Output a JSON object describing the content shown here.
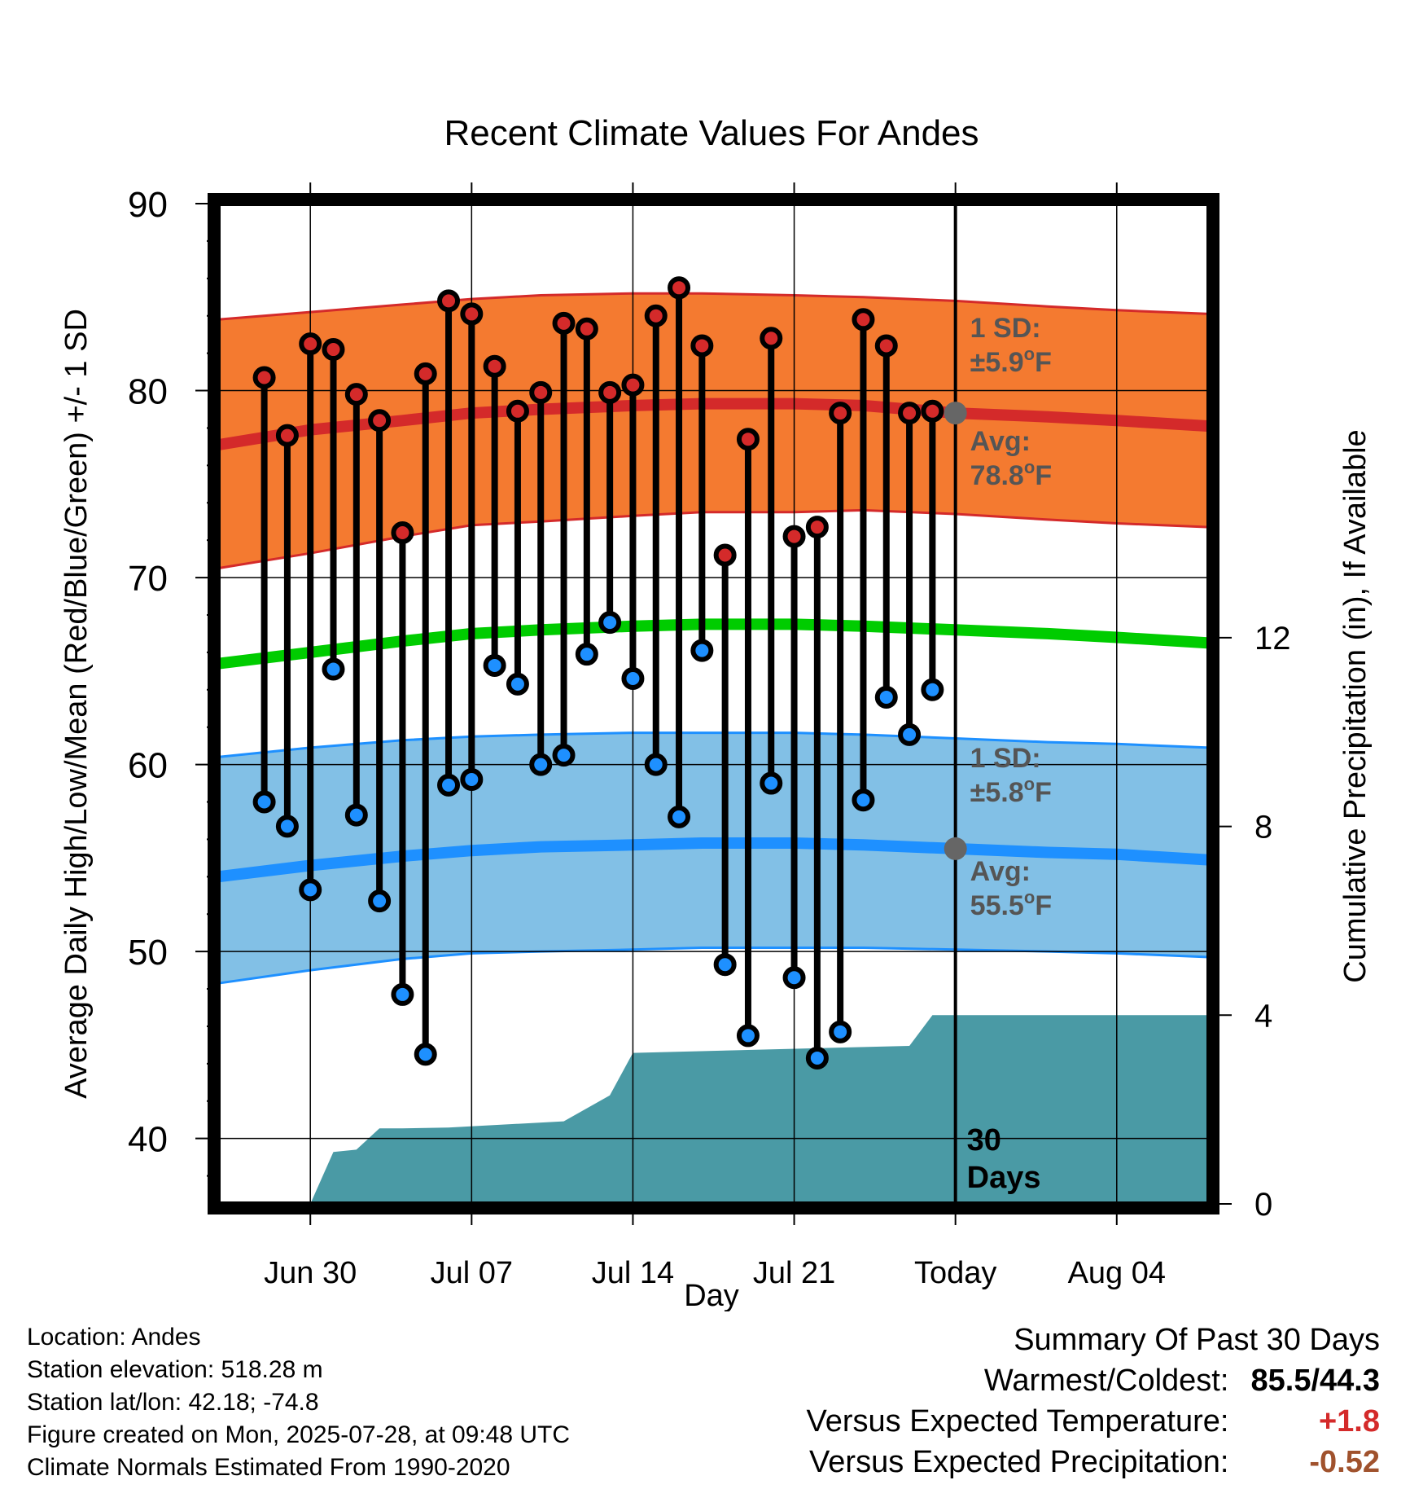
{
  "chart_data": {
    "type": "line",
    "title": "Recent Climate Values For Andes",
    "xlabel": "Day",
    "ylabel": "Average Daily High/Low/Mean (Red/Blue/Green) +/- 1 SD",
    "y2label": "Cumulative Precipitation (in), If Available",
    "ylim": [
      36.5,
      90
    ],
    "y2lim": [
      0,
      21.2
    ],
    "yticks": [
      40,
      50,
      60,
      70,
      80,
      90
    ],
    "y2ticks": [
      0,
      4,
      8,
      12
    ],
    "xlim": [
      "2025-06-26",
      "2025-08-08"
    ],
    "xticks": [
      {
        "date": "2025-06-30",
        "label": "Jun 30"
      },
      {
        "date": "2025-07-07",
        "label": "Jul 07"
      },
      {
        "date": "2025-07-14",
        "label": "Jul 14"
      },
      {
        "date": "2025-07-21",
        "label": "Jul 21"
      },
      {
        "date": "2025-07-28",
        "label": "Today"
      },
      {
        "date": "2025-08-04",
        "label": "Aug 04"
      }
    ],
    "grid": true,
    "today": "2025-07-28",
    "days_label": "30\nDays",
    "normals": {
      "dates": [
        "2025-06-26",
        "2025-06-30",
        "2025-07-04",
        "2025-07-07",
        "2025-07-10",
        "2025-07-14",
        "2025-07-17",
        "2025-07-21",
        "2025-07-24",
        "2025-07-28",
        "2025-08-01",
        "2025-08-04",
        "2025-08-08"
      ],
      "high_avg": [
        77.1,
        77.9,
        78.4,
        78.8,
        79.0,
        79.2,
        79.3,
        79.3,
        79.2,
        78.8,
        78.6,
        78.4,
        78.1
      ],
      "high_upper": [
        83.8,
        84.2,
        84.6,
        84.9,
        85.1,
        85.2,
        85.2,
        85.1,
        85.0,
        84.8,
        84.5,
        84.3,
        84.1
      ],
      "high_lower": [
        70.5,
        71.3,
        72.2,
        72.8,
        73.0,
        73.3,
        73.5,
        73.5,
        73.6,
        73.4,
        73.1,
        72.9,
        72.7
      ],
      "mean": [
        65.4,
        66.0,
        66.6,
        67.0,
        67.2,
        67.4,
        67.5,
        67.5,
        67.4,
        67.2,
        67.0,
        66.8,
        66.5
      ],
      "low_avg": [
        54.0,
        54.6,
        55.1,
        55.4,
        55.6,
        55.7,
        55.8,
        55.8,
        55.7,
        55.5,
        55.3,
        55.2,
        54.9
      ],
      "low_upper": [
        60.4,
        60.9,
        61.3,
        61.5,
        61.6,
        61.7,
        61.7,
        61.7,
        61.6,
        61.4,
        61.2,
        61.1,
        60.9
      ],
      "low_lower": [
        48.3,
        49.0,
        49.6,
        49.9,
        50.0,
        50.1,
        50.2,
        50.2,
        50.2,
        50.1,
        50.0,
        49.9,
        49.7
      ]
    },
    "series": [
      {
        "name": "High",
        "color": "#d42a2a",
        "values": [
          80.7,
          77.6,
          82.5,
          82.2,
          79.8,
          78.4,
          72.4,
          80.9,
          84.8,
          84.1,
          81.3,
          78.9,
          79.9,
          83.6,
          83.3,
          79.9,
          80.3,
          84.0,
          85.5,
          82.4,
          71.2,
          77.4,
          82.8,
          72.2,
          72.7,
          78.8,
          83.8,
          82.4,
          78.8,
          78.9
        ]
      },
      {
        "name": "Low",
        "color": "#1e90ff",
        "values": [
          58.0,
          56.7,
          53.3,
          65.1,
          57.3,
          52.7,
          47.7,
          44.5,
          58.9,
          59.2,
          65.3,
          64.3,
          60.0,
          60.5,
          65.9,
          67.6,
          64.6,
          60.0,
          57.2,
          66.1,
          49.3,
          45.5,
          59.0,
          48.6,
          44.3,
          45.7,
          58.1,
          63.6,
          61.6,
          64.0
        ]
      }
    ],
    "x": [
      "2025-06-28",
      "2025-06-29",
      "2025-06-30",
      "2025-07-01",
      "2025-07-02",
      "2025-07-03",
      "2025-07-04",
      "2025-07-05",
      "2025-07-06",
      "2025-07-07",
      "2025-07-08",
      "2025-07-09",
      "2025-07-10",
      "2025-07-11",
      "2025-07-12",
      "2025-07-13",
      "2025-07-14",
      "2025-07-15",
      "2025-07-16",
      "2025-07-17",
      "2025-07-18",
      "2025-07-19",
      "2025-07-20",
      "2025-07-21",
      "2025-07-22",
      "2025-07-23",
      "2025-07-24",
      "2025-07-25",
      "2025-07-26",
      "2025-07-27"
    ],
    "precipitation": {
      "dates": [
        "2025-06-30",
        "2025-07-01",
        "2025-07-02",
        "2025-07-03",
        "2025-07-04",
        "2025-07-06",
        "2025-07-11",
        "2025-07-13",
        "2025-07-14",
        "2025-07-26",
        "2025-07-27",
        "2025-08-08"
      ],
      "values": [
        0.0,
        1.1,
        1.15,
        1.6,
        1.6,
        1.62,
        1.75,
        2.3,
        3.2,
        3.35,
        4.0,
        4.0
      ]
    },
    "annotations": {
      "high_sd": "1 SD:\n±5.9°F",
      "high_avg": "Avg:\n78.8°F",
      "low_sd": "1 SD:\n±5.8°F",
      "low_avg": "Avg:\n55.5°F"
    },
    "colors": {
      "high_band": "#f47a30",
      "high_line": "#d42a2a",
      "mean_line": "#00cc00",
      "low_band": "#82c0e6",
      "low_line": "#1e90ff",
      "precip": "#4a9aa5",
      "annotation_text": "#555555"
    }
  },
  "footer": {
    "location": "Location: Andes",
    "elevation": "Station elevation: 518.28 m",
    "latlon": "Station lat/lon: 42.18; -74.8",
    "created": "Figure created on Mon, 2025-07-28, at 09:48 UTC",
    "normals": "Climate Normals Estimated From 1990-2020"
  },
  "summary": {
    "title": "Summary Of Past 30 Days",
    "warm_cold_label": "Warmest/Coldest:",
    "warm_cold_value": "85.5/44.3",
    "temp_label": "Versus Expected Temperature:",
    "temp_value": "+1.8",
    "temp_color": "#d42a2a",
    "precip_label": "Versus Expected Precipitation:",
    "precip_value": "-0.52",
    "precip_color": "#a0522d"
  }
}
